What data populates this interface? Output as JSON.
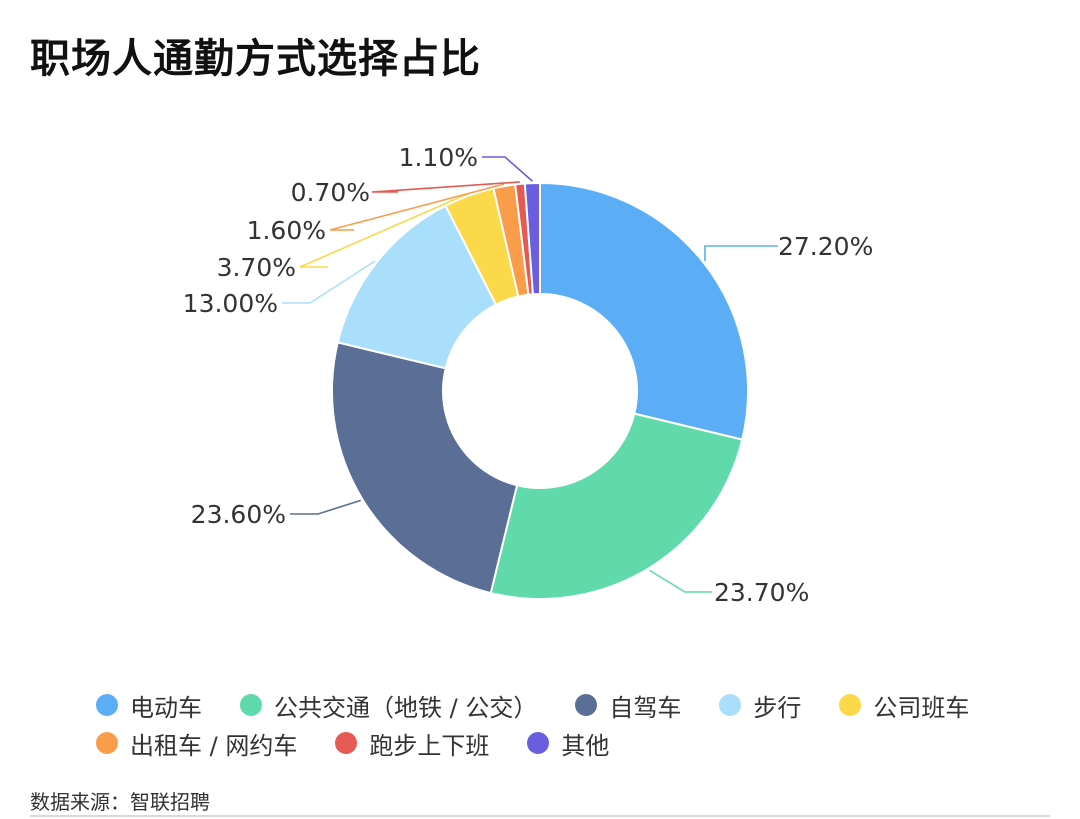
{
  "title": "职场人通勤方式选择占比",
  "source": "数据来源：智联招聘",
  "chart_data": {
    "type": "pie",
    "variant": "donut",
    "title": "职场人通勤方式选择占比",
    "legend_position": "bottom",
    "series": [
      {
        "name": "电动车",
        "value": 27.2,
        "label": "27.20%",
        "color": "#5baef6"
      },
      {
        "name": "公共交通（地铁 / 公交）",
        "value": 23.7,
        "label": "23.70%",
        "color": "#60d9ab"
      },
      {
        "name": "自驾车",
        "value": 23.6,
        "label": "23.60%",
        "color": "#5b6e96"
      },
      {
        "name": "步行",
        "value": 13.0,
        "label": "13.00%",
        "color": "#a9dffb"
      },
      {
        "name": "公司班车",
        "value": 3.7,
        "label": "3.70%",
        "color": "#fbd94a"
      },
      {
        "name": "出租车 / 网约车",
        "value": 1.6,
        "label": "1.60%",
        "color": "#f99d4a"
      },
      {
        "name": "跑步上下班",
        "value": 0.7,
        "label": "0.70%",
        "color": "#e55a52"
      },
      {
        "name": "其他",
        "value": 1.1,
        "label": "1.10%",
        "color": "#6a5de0"
      }
    ]
  }
}
